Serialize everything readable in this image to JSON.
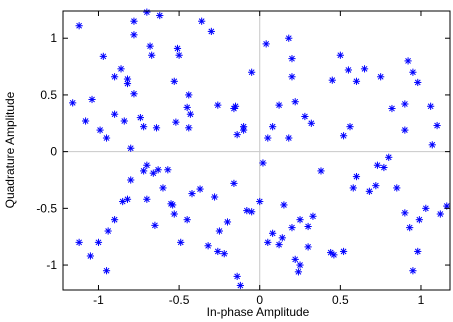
{
  "chart_data": {
    "type": "scatter",
    "title": "",
    "xlabel": "In-phase Amplitude",
    "ylabel": "Quadrature Amplitude",
    "xlim": [
      -1.22,
      1.18
    ],
    "ylim": [
      -1.22,
      1.24
    ],
    "xticks": [
      -1,
      -0.5,
      0,
      0.5,
      1
    ],
    "xtick_labels": [
      "-1",
      "-0.5",
      "0",
      "0.5",
      "1"
    ],
    "yticks": [
      -1,
      -0.5,
      0,
      0.5,
      1
    ],
    "ytick_labels": [
      "-1",
      "-0.5",
      "0",
      "0.5",
      "1"
    ],
    "grid": false,
    "zero_lines": true,
    "marker": "asterisk",
    "series": [
      {
        "name": "",
        "color": "#0000ff",
        "points": [
          [
            -1.12,
            1.11
          ],
          [
            -0.97,
            0.84
          ],
          [
            -1.16,
            0.43
          ],
          [
            -1.08,
            0.27
          ],
          [
            -1.04,
            0.46
          ],
          [
            -0.99,
            0.19
          ],
          [
            -0.95,
            0.12
          ],
          [
            -0.9,
            0.66
          ],
          [
            -0.86,
            0.73
          ],
          [
            -0.82,
            0.64
          ],
          [
            -0.82,
            0.6
          ],
          [
            -0.9,
            0.33
          ],
          [
            -0.84,
            0.27
          ],
          [
            -0.78,
            0.51
          ],
          [
            -0.78,
            1.15
          ],
          [
            -0.78,
            1.03
          ],
          [
            -0.7,
            1.23
          ],
          [
            -0.68,
            0.93
          ],
          [
            -0.67,
            0.85
          ],
          [
            -0.62,
            1.2
          ],
          [
            -0.8,
            0.03
          ],
          [
            -0.74,
            0.3
          ],
          [
            -0.72,
            0.22
          ],
          [
            -0.64,
            0.21
          ],
          [
            -0.53,
            0.62
          ],
          [
            -0.51,
            0.91
          ],
          [
            -0.5,
            0.85
          ],
          [
            -0.52,
            0.26
          ],
          [
            -0.45,
            0.39
          ],
          [
            -0.44,
            0.5
          ],
          [
            -0.43,
            0.33
          ],
          [
            -0.44,
            0.21
          ],
          [
            -0.36,
            1.15
          ],
          [
            -0.3,
            1.06
          ],
          [
            -0.26,
            0.41
          ],
          [
            -0.16,
            0.38
          ],
          [
            -0.15,
            0.4
          ],
          [
            -0.14,
            0.15
          ],
          [
            -0.1,
            0.19
          ],
          [
            -0.1,
            0.22
          ],
          [
            -0.05,
            0.7
          ],
          [
            0.04,
            0.95
          ],
          [
            0.08,
            0.22
          ],
          [
            0.05,
            0.12
          ],
          [
            0.12,
            0.41
          ],
          [
            0.18,
            0.12
          ],
          [
            0.18,
            1.0
          ],
          [
            0.2,
            0.66
          ],
          [
            0.22,
            0.44
          ],
          [
            0.2,
            0.82
          ],
          [
            0.28,
            0.31
          ],
          [
            0.32,
            0.25
          ],
          [
            0.45,
            0.63
          ],
          [
            0.5,
            0.85
          ],
          [
            0.52,
            0.14
          ],
          [
            0.55,
            0.72
          ],
          [
            0.56,
            0.22
          ],
          [
            0.65,
            0.73
          ],
          [
            0.6,
            0.62
          ],
          [
            0.75,
            0.66
          ],
          [
            0.82,
            0.38
          ],
          [
            0.9,
            0.42
          ],
          [
            0.9,
            0.19
          ],
          [
            0.92,
            0.8
          ],
          [
            0.95,
            0.7
          ],
          [
            0.98,
            0.61
          ],
          [
            1.06,
            0.4
          ],
          [
            1.1,
            0.23
          ],
          [
            1.07,
            0.06
          ],
          [
            -1.12,
            -0.8
          ],
          [
            -1.05,
            -0.92
          ],
          [
            -1.0,
            -0.8
          ],
          [
            -0.95,
            -1.05
          ],
          [
            -0.94,
            -0.7
          ],
          [
            -0.85,
            -0.44
          ],
          [
            -0.82,
            -0.42
          ],
          [
            -0.8,
            -0.25
          ],
          [
            -0.72,
            -0.17
          ],
          [
            -0.7,
            -0.12
          ],
          [
            -0.66,
            -0.19
          ],
          [
            -0.65,
            -0.65
          ],
          [
            -0.63,
            -0.16
          ],
          [
            -0.6,
            -0.32
          ],
          [
            -0.57,
            -0.16
          ],
          [
            -0.54,
            -0.47
          ],
          [
            -0.53,
            -0.55
          ],
          [
            -0.49,
            -0.8
          ],
          [
            -0.45,
            -0.6
          ],
          [
            -0.42,
            -0.37
          ],
          [
            -0.37,
            -0.33
          ],
          [
            -0.32,
            -0.83
          ],
          [
            -0.28,
            -0.4
          ],
          [
            -0.26,
            -0.88
          ],
          [
            -0.25,
            -0.7
          ],
          [
            -0.22,
            -0.9
          ],
          [
            -0.2,
            -0.62
          ],
          [
            -0.16,
            -0.28
          ],
          [
            -0.14,
            -1.1
          ],
          [
            -0.12,
            -1.18
          ],
          [
            -0.08,
            -0.52
          ],
          [
            -0.05,
            -0.53
          ],
          [
            0.0,
            -0.44
          ],
          [
            0.02,
            -0.1
          ],
          [
            0.05,
            -0.8
          ],
          [
            0.08,
            -0.72
          ],
          [
            0.12,
            -0.82
          ],
          [
            0.14,
            -0.76
          ],
          [
            0.15,
            -0.47
          ],
          [
            0.2,
            -0.67
          ],
          [
            0.22,
            -0.95
          ],
          [
            0.24,
            -1.06
          ],
          [
            0.25,
            -0.6
          ],
          [
            0.25,
            -1.0
          ],
          [
            0.3,
            -0.66
          ],
          [
            0.33,
            -0.57
          ],
          [
            0.3,
            -0.84
          ],
          [
            0.38,
            -0.17
          ],
          [
            0.44,
            -0.89
          ],
          [
            0.46,
            -0.91
          ],
          [
            0.52,
            -0.88
          ],
          [
            0.58,
            -0.32
          ],
          [
            0.68,
            -0.35
          ],
          [
            0.73,
            -0.12
          ],
          [
            0.77,
            -0.14
          ],
          [
            0.85,
            -0.32
          ],
          [
            0.9,
            -0.54
          ],
          [
            0.93,
            -0.67
          ],
          [
            0.95,
            -1.05
          ],
          [
            0.98,
            -0.88
          ],
          [
            0.99,
            -0.6
          ],
          [
            1.03,
            -0.5
          ],
          [
            1.12,
            -0.55
          ],
          [
            1.16,
            -0.48
          ],
          [
            0.8,
            -0.05
          ],
          [
            0.72,
            -0.3
          ],
          [
            0.6,
            -0.22
          ],
          [
            -0.55,
            -0.46
          ],
          [
            -0.7,
            -0.42
          ],
          [
            -0.9,
            -0.6
          ]
        ]
      }
    ]
  }
}
